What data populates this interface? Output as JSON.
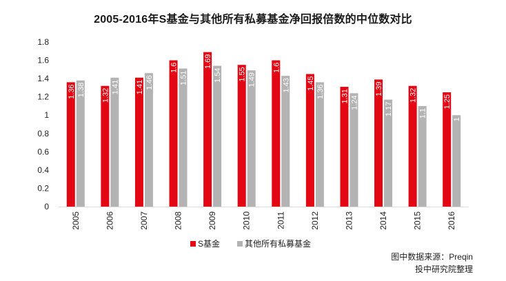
{
  "chart_data": {
    "type": "bar",
    "title": "2005-2016年S基金与其他所有私募基金净回报倍数的中位数对比",
    "xlabel": "",
    "ylabel": "",
    "categories": [
      "2005",
      "2006",
      "2007",
      "2008",
      "2009",
      "2010",
      "2011",
      "2012",
      "2013",
      "2014",
      "2015",
      "2016"
    ],
    "series": [
      {
        "name": "S基金",
        "color": "#e30613",
        "values": [
          1.36,
          1.32,
          1.41,
          1.6,
          1.69,
          1.55,
          1.6,
          1.45,
          1.31,
          1.39,
          1.32,
          1.25
        ]
      },
      {
        "name": "其他所有私募基金",
        "color": "#b3b3b3",
        "values": [
          1.38,
          1.41,
          1.46,
          1.51,
          1.54,
          1.49,
          1.43,
          1.36,
          1.24,
          1.17,
          1.1,
          1
        ]
      }
    ],
    "ylim": [
      0,
      1.8
    ],
    "yticks": [
      0,
      0.2,
      0.4,
      0.6,
      0.8,
      1,
      1.2,
      1.4,
      1.6,
      1.8
    ],
    "grid": false,
    "legend_position": "bottom-center"
  },
  "source": {
    "line1": "图中数据来源：Preqin",
    "line2": "投中研究院整理"
  }
}
